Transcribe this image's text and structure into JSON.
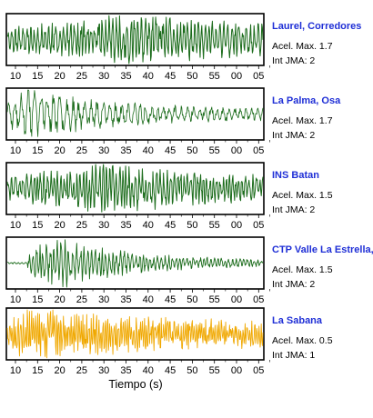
{
  "chart_data": {
    "type": "line",
    "xlabel": "Tiempo (s)",
    "tick_labels": [
      "10",
      "15",
      "20",
      "25",
      "30",
      "35",
      "40",
      "45",
      "50",
      "55",
      "00",
      "05"
    ],
    "panels": [
      {
        "station": "Laurel, Corredores",
        "acel_label": "Acel. Max. 1.7",
        "jma_label": "Int JMA: 2",
        "color": "#1a6b1a",
        "stroke_width": 1.0,
        "seed": 11,
        "onset": 0.0,
        "peak_t": 0.45,
        "decay": 0.6,
        "base": 0.45,
        "freq": 0.9
      },
      {
        "station": "La Palma, Osa",
        "acel_label": "Acel. Max. 1.7",
        "jma_label": "Int JMA: 2",
        "color": "#1a6b1a",
        "stroke_width": 0.8,
        "seed": 23,
        "onset": 0.0,
        "peak_t": 0.08,
        "decay": 0.35,
        "base": 0.18,
        "freq": 0.55
      },
      {
        "station": "INS Batan",
        "acel_label": "Acel. Max. 1.5",
        "jma_label": "Int JMA: 2",
        "color": "#1a6b1a",
        "stroke_width": 1.0,
        "seed": 37,
        "onset": 0.0,
        "peak_t": 0.38,
        "decay": 0.5,
        "base": 0.3,
        "freq": 1.0
      },
      {
        "station": "CTP Valle La Estrella, L",
        "acel_label": "Acel. Max. 1.5",
        "jma_label": "Int JMA: 2",
        "color": "#1a6b1a",
        "stroke_width": 0.9,
        "seed": 51,
        "onset": 0.08,
        "peak_t": 0.2,
        "decay": 0.28,
        "base": 0.1,
        "freq": 0.9
      },
      {
        "station": "La Sabana",
        "acel_label": "Acel. Max. 0.5",
        "jma_label": "Int JMA: 1",
        "color": "#f0a800",
        "stroke_width": 0.9,
        "seed": 67,
        "onset": 0.0,
        "peak_t": 0.06,
        "decay": 0.7,
        "base": 0.35,
        "freq": 1.6
      }
    ]
  }
}
